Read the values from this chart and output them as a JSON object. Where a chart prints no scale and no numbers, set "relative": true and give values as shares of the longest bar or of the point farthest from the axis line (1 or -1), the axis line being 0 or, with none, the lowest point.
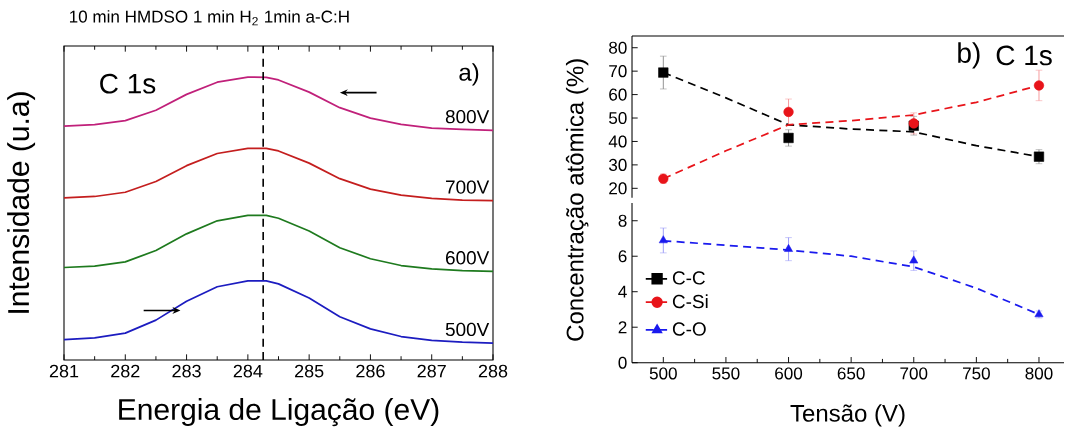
{
  "chart_data": [
    {
      "type": "line",
      "title": "10 min HMDSO 1 min H$_{2}$ 1min a-C:H",
      "xlabel": "Energia de Ligação (eV)",
      "ylabel": "Intensidade (u.a)",
      "relative": true,
      "tick_labels": "x",
      "xlim": [
        281,
        288
      ],
      "xticks": [
        281,
        282,
        283,
        284,
        285,
        286,
        287,
        288
      ],
      "x": [
        281,
        281.5,
        282,
        282.5,
        283,
        283.5,
        284,
        284.3,
        284.5,
        285,
        285.5,
        286,
        286.5,
        287,
        287.5,
        288
      ],
      "series": [
        {
          "name": "500V",
          "color": "#1c1cc0",
          "values": [
            0.072,
            0.078,
            0.095,
            0.141,
            0.208,
            0.259,
            0.28,
            0.28,
            0.269,
            0.219,
            0.153,
            0.11,
            0.083,
            0.069,
            0.063,
            0.06
          ]
        },
        {
          "name": "600V",
          "color": "#1e7a1e",
          "values": [
            0.327,
            0.332,
            0.347,
            0.387,
            0.446,
            0.492,
            0.511,
            0.511,
            0.501,
            0.456,
            0.397,
            0.358,
            0.334,
            0.322,
            0.316,
            0.313
          ]
        },
        {
          "name": "700V",
          "color": "#c41e1e",
          "values": [
            0.573,
            0.578,
            0.593,
            0.631,
            0.687,
            0.73,
            0.748,
            0.748,
            0.739,
            0.696,
            0.641,
            0.604,
            0.583,
            0.571,
            0.565,
            0.563
          ]
        },
        {
          "name": "800V",
          "color": "#c0207a",
          "values": [
            0.827,
            0.832,
            0.846,
            0.883,
            0.939,
            0.982,
            1.0,
            0.999,
            0.99,
            0.947,
            0.892,
            0.855,
            0.833,
            0.82,
            0.815,
            0.812
          ]
        }
      ],
      "ref_lines": [
        {
          "axis": "x",
          "value": 284.25,
          "color": "#000000",
          "line_style": "dashed"
        }
      ],
      "annotations": [
        "C 1s",
        "a)"
      ]
    },
    {
      "type": "scatter",
      "tick_labels": "y",
      "xlim": [
        475,
        820
      ],
      "ylim": [
        16,
        85
      ],
      "yticks": [
        20,
        30,
        40,
        50,
        60,
        70,
        80
      ],
      "legend": "bottom left",
      "x": [
        500,
        600,
        700,
        800
      ],
      "series": [
        {
          "name": "C-C",
          "color": "#000000",
          "marker": "square",
          "values": [
            69.4,
            41.5,
            46.7,
            33.5
          ],
          "errors": [
            7,
            3.5,
            4,
            3
          ]
        },
        {
          "name": "C-Si",
          "color": "#e8141a",
          "marker": "circle",
          "values": [
            24.1,
            52.6,
            47.7,
            63.9
          ],
          "errors": [
            2,
            5.5,
            4.5,
            6.5
          ]
        },
        {
          "type": "line",
          "color": "#000000",
          "line_style": "dashed",
          "x": [
            500,
            550,
            600,
            650,
            700,
            750,
            800
          ],
          "values": [
            69.4,
            58.6,
            47.1,
            45.3,
            44.1,
            38.2,
            33.5
          ]
        },
        {
          "type": "line",
          "color": "#e8141a",
          "line_style": "dashed",
          "x": [
            500,
            550,
            600,
            650,
            700,
            750,
            800
          ],
          "values": [
            24.1,
            36,
            47.1,
            48.9,
            51.3,
            56.7,
            63.9
          ]
        }
      ],
      "annotations": [
        "b)",
        "C 1s"
      ]
    },
    {
      "type": "scatter",
      "xlabel": "Tensão (V)",
      "ylabel": "Concentração atômica (%)",
      "xlim": [
        475,
        820
      ],
      "xticks": [
        500,
        550,
        600,
        650,
        700,
        750,
        800
      ],
      "ylim": [
        0,
        9
      ],
      "yticks": [
        0,
        2,
        4,
        6,
        8
      ],
      "legend": "left",
      "x": [
        500,
        600,
        700,
        800
      ],
      "series": [
        {
          "name": "C-O",
          "color": "#1a1aee",
          "marker": "triangle",
          "values": [
            6.89,
            6.4,
            5.75,
            2.72
          ],
          "errors": [
            0.7,
            0.65,
            0.55,
            0.2
          ]
        },
        {
          "type": "line",
          "color": "#1a1aee",
          "line_style": "dashed",
          "x": [
            500,
            550,
            600,
            650,
            700,
            750,
            800
          ],
          "values": [
            6.87,
            6.62,
            6.35,
            6.0,
            5.4,
            4.2,
            2.72
          ]
        }
      ]
    }
  ]
}
